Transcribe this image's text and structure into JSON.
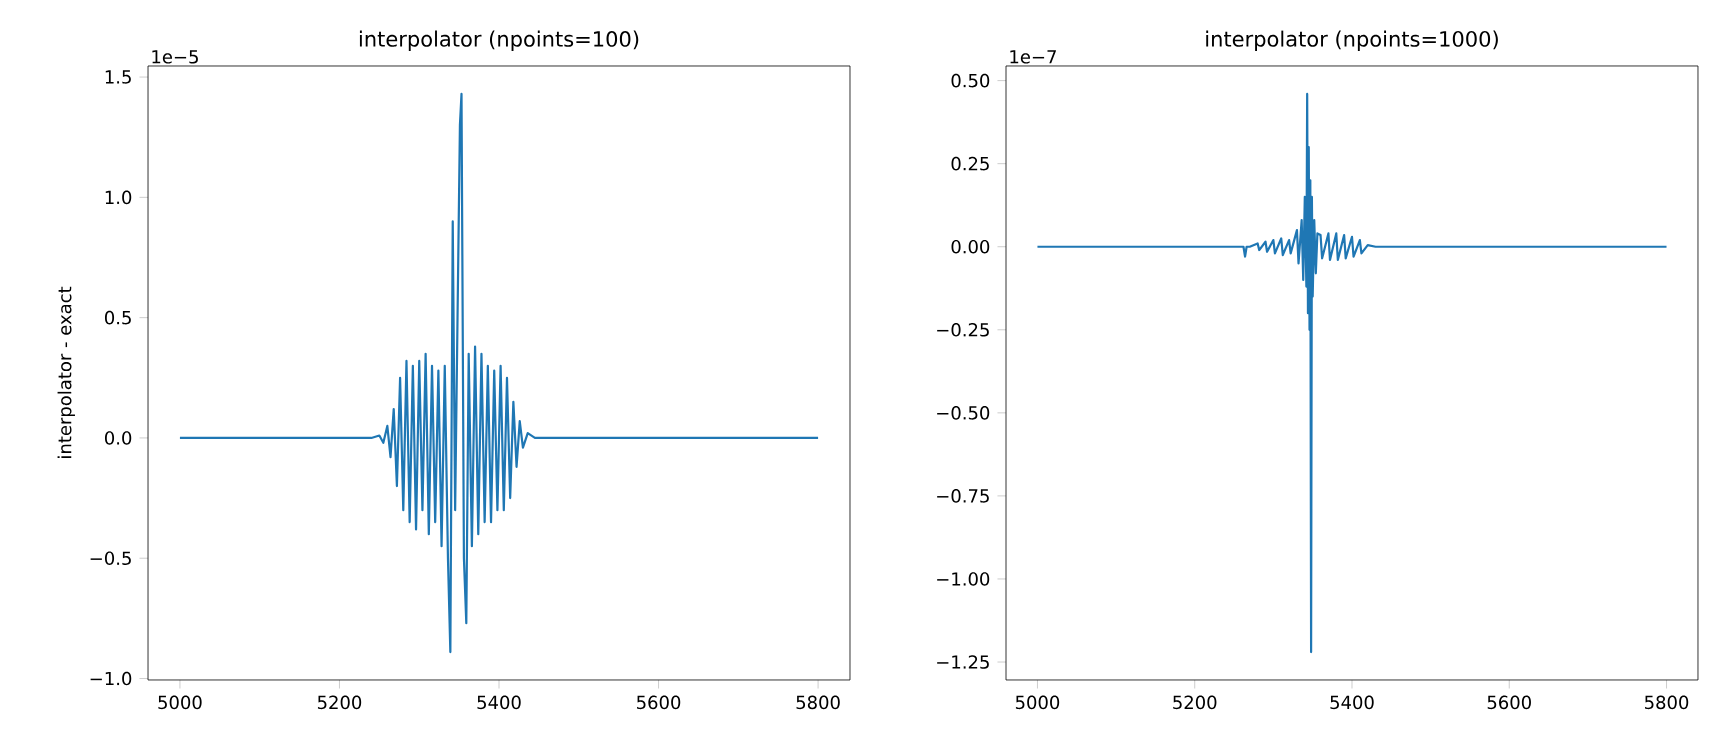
{
  "chart_data": [
    {
      "type": "line",
      "title": "interpolator (npoints=100)",
      "ylabel": "interpolator - exact",
      "annotations": [
        "1e−5"
      ],
      "x": [
        5000,
        5240,
        5250,
        5255,
        5260,
        5264,
        5268,
        5272,
        5276,
        5280,
        5284,
        5288,
        5292,
        5296,
        5300,
        5304,
        5308,
        5312,
        5316,
        5320,
        5324,
        5328,
        5332,
        5336,
        5339,
        5342,
        5345,
        5348,
        5351,
        5353,
        5356,
        5359,
        5362,
        5366,
        5370,
        5374,
        5378,
        5382,
        5386,
        5390,
        5394,
        5398,
        5402,
        5406,
        5410,
        5414,
        5418,
        5422,
        5426,
        5430,
        5436,
        5445,
        5800
      ],
      "series": [
        {
          "color": "#1f77b4",
          "values": [
            0,
            0,
            0.01,
            -0.02,
            0.05,
            -0.08,
            0.12,
            -0.2,
            0.25,
            -0.3,
            0.32,
            -0.35,
            0.3,
            -0.38,
            0.32,
            -0.3,
            0.35,
            -0.4,
            0.3,
            -0.35,
            0.28,
            -0.45,
            0.3,
            -0.5,
            -0.89,
            0.9,
            -0.3,
            0.5,
            1.3,
            1.43,
            -0.5,
            -0.77,
            0.35,
            -0.45,
            0.38,
            -0.4,
            0.35,
            -0.35,
            0.3,
            -0.35,
            0.28,
            -0.3,
            0.3,
            -0.3,
            0.25,
            -0.25,
            0.15,
            -0.12,
            0.07,
            -0.04,
            0.02,
            0,
            0
          ]
        }
      ],
      "xlim": [
        4960,
        5840
      ],
      "ylim": [
        -1.006,
        1.546
      ],
      "xticks": [
        5000,
        5200,
        5400,
        5600,
        5800
      ],
      "yticks": [
        {
          "value": -1.0,
          "label": "−1.0"
        },
        {
          "value": -0.5,
          "label": "−0.5"
        },
        {
          "value": 0.0,
          "label": "0.0"
        },
        {
          "value": 0.5,
          "label": "0.5"
        },
        {
          "value": 1.0,
          "label": "1.0"
        },
        {
          "value": 1.5,
          "label": "1.5"
        }
      ]
    },
    {
      "type": "line",
      "title": "interpolator (npoints=1000)",
      "annotations": [
        "1e−7"
      ],
      "x": [
        5000,
        5262,
        5264,
        5266,
        5270,
        5280,
        5282,
        5290,
        5292,
        5300,
        5302,
        5310,
        5312,
        5320,
        5322,
        5330,
        5332,
        5336,
        5338,
        5340,
        5342,
        5343,
        5344,
        5345,
        5346,
        5347,
        5348,
        5349,
        5350,
        5352,
        5354,
        5356,
        5360,
        5362,
        5370,
        5372,
        5380,
        5382,
        5390,
        5392,
        5400,
        5402,
        5410,
        5412,
        5420,
        5430,
        5800
      ],
      "series": [
        {
          "color": "#1f77b4",
          "values": [
            0,
            0,
            -0.03,
            0,
            0,
            0.01,
            -0.01,
            0.015,
            -0.015,
            0.02,
            -0.02,
            0.025,
            -0.025,
            0.02,
            -0.02,
            0.05,
            -0.05,
            0.08,
            -0.1,
            0.15,
            -0.12,
            0.46,
            -0.2,
            0.3,
            -0.25,
            0.2,
            -1.22,
            0.15,
            -0.15,
            0.08,
            -0.08,
            0.04,
            0.035,
            -0.035,
            0.04,
            -0.04,
            0.04,
            -0.04,
            0.035,
            -0.035,
            0.03,
            -0.03,
            0.02,
            -0.02,
            0.005,
            0,
            0
          ]
        }
      ],
      "xlim": [
        4960,
        5840
      ],
      "ylim": [
        -1.304,
        0.544
      ],
      "xticks": [
        5000,
        5200,
        5400,
        5600,
        5800
      ],
      "yticks": [
        {
          "value": -1.25,
          "label": "−1.25"
        },
        {
          "value": -1.0,
          "label": "−1.00"
        },
        {
          "value": -0.75,
          "label": "−0.75"
        },
        {
          "value": -0.5,
          "label": "−0.50"
        },
        {
          "value": -0.25,
          "label": "−0.25"
        },
        {
          "value": 0.0,
          "label": "0.00"
        },
        {
          "value": 0.25,
          "label": "0.25"
        },
        {
          "value": 0.5,
          "label": "0.50"
        }
      ]
    }
  ]
}
